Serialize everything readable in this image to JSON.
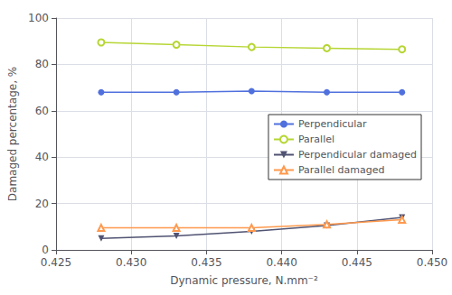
{
  "chart_data": {
    "type": "line",
    "x_label": "Dynamic pressure, N.mm⁻²",
    "y_label": "Damaged percentage, %",
    "x": [
      0.428,
      0.433,
      0.438,
      0.443,
      0.448
    ],
    "series": [
      {
        "name": "Perpendicular",
        "marker": "circle",
        "values": [
          68,
          68,
          68.5,
          68,
          68
        ]
      },
      {
        "name": "Parallel",
        "marker": "open_circle",
        "values": [
          89.5,
          88.5,
          87.5,
          87,
          86.5
        ]
      },
      {
        "name": "Perpendicular damaged",
        "marker": "triangle_down",
        "values": [
          5,
          6,
          8,
          10.5,
          14
        ]
      },
      {
        "name": "Parallel damaged",
        "marker": "open_triangle_up",
        "values": [
          9.5,
          9.5,
          9.5,
          11,
          13
        ]
      }
    ],
    "xlim": [
      0.425,
      0.45
    ],
    "ylim": [
      0,
      100
    ],
    "xticks": [
      0.425,
      {
        "value": 0.43,
        "label": "0.430"
      },
      0.435,
      {
        "value": 0.44,
        "label": "0.440"
      },
      0.445,
      {
        "value": 0.45,
        "label": "0.450"
      }
    ],
    "yticks": [
      0,
      20,
      40,
      60,
      80,
      100
    ],
    "grid": true,
    "legend": "center right"
  }
}
